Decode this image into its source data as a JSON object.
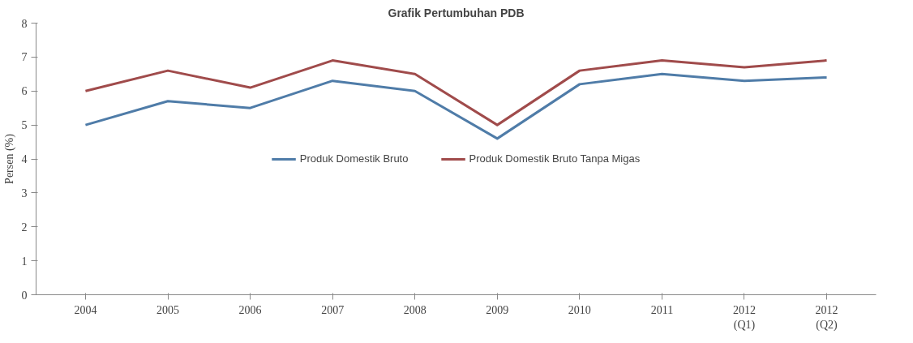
{
  "chart_data": {
    "type": "line",
    "title": "Grafik Pertumbuhan PDB",
    "ylabel": "Persen (%)",
    "categories": [
      "2004",
      "2005",
      "2006",
      "2007",
      "2008",
      "2009",
      "2010",
      "2011",
      "2012 (Q1)",
      "2012 (Q2)"
    ],
    "series": [
      {
        "name": "Produk Domestik Bruto",
        "color": "#4f7ca8",
        "values": [
          5.0,
          5.7,
          5.5,
          6.3,
          6.0,
          4.6,
          6.2,
          6.5,
          6.3,
          6.4
        ]
      },
      {
        "name": "Produk Domestik Bruto Tanpa Migas",
        "color": "#a04b4b",
        "values": [
          6.0,
          6.6,
          6.1,
          6.9,
          6.5,
          5.0,
          6.6,
          6.9,
          6.7,
          6.9
        ]
      }
    ],
    "ylim": [
      0,
      8
    ],
    "yticks": [
      0,
      1,
      2,
      3,
      4,
      5,
      6,
      7,
      8
    ],
    "grid": false,
    "legend": "center",
    "marker": "none",
    "line_style": "solid"
  }
}
